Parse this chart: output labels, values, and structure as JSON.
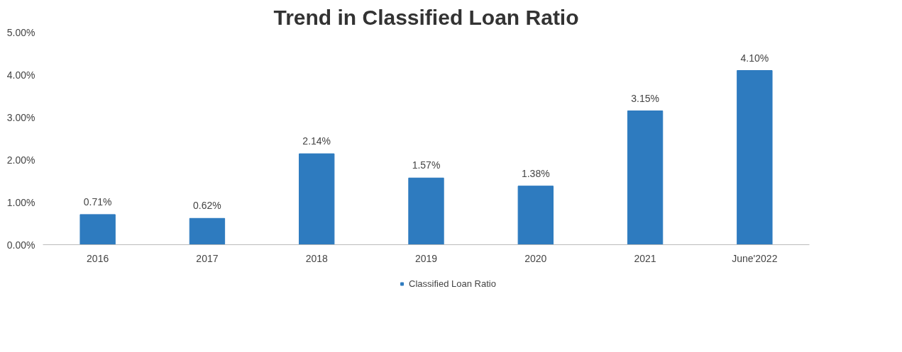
{
  "chart_data": {
    "type": "bar",
    "title": "Trend in Classified Loan Ratio",
    "categories": [
      "2016",
      "2017",
      "2018",
      "2019",
      "2020",
      "2021",
      "June'2022"
    ],
    "series": [
      {
        "name": "Classified Loan Ratio",
        "color": "#2e7bbf",
        "values": [
          0.71,
          0.62,
          2.14,
          1.57,
          1.38,
          3.15,
          4.1
        ],
        "value_labels": [
          "0.71%",
          "0.62%",
          "2.14%",
          "1.57%",
          "1.38%",
          "3.15%",
          "4.10%"
        ]
      }
    ],
    "ylim": [
      0,
      5
    ],
    "yticks": [
      {
        "value": 0,
        "label": "0.00%"
      },
      {
        "value": 1,
        "label": "1.00%"
      },
      {
        "value": 2,
        "label": "2.00%"
      },
      {
        "value": 3,
        "label": "3.00%"
      },
      {
        "value": 4,
        "label": "4.00%"
      },
      {
        "value": 5,
        "label": "5.00%"
      }
    ],
    "grid": false,
    "legend": "bottom"
  }
}
